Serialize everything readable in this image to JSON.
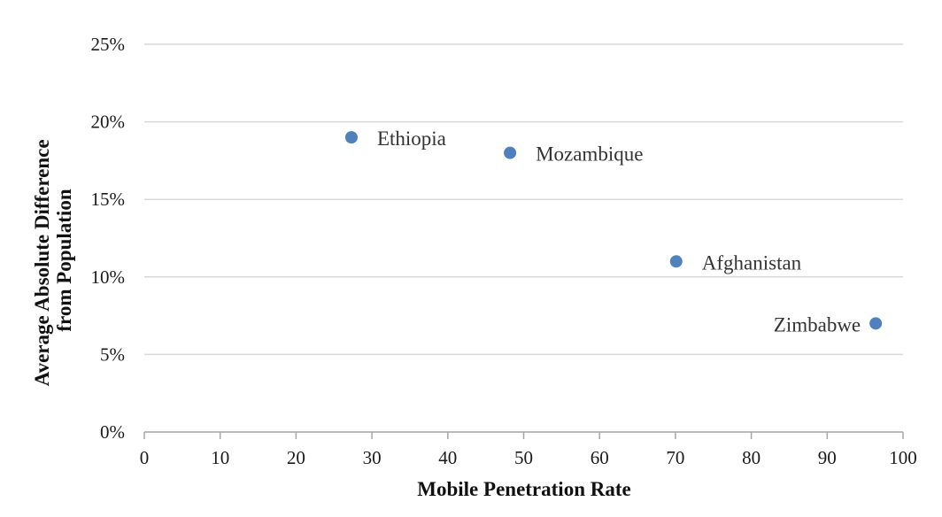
{
  "chart_data": {
    "type": "scatter",
    "xlabel": "Mobile Penetration Rate",
    "ylabel": [
      "Average Absolute Difference",
      "from Population"
    ],
    "xlim": [
      0,
      100
    ],
    "ylim": [
      0,
      25
    ],
    "xticks": [
      0,
      10,
      20,
      30,
      40,
      50,
      60,
      70,
      80,
      90,
      100
    ],
    "yticks": [
      0,
      5,
      10,
      15,
      20,
      25
    ],
    "ytick_labels": [
      "0%",
      "5%",
      "10%",
      "15%",
      "20%",
      "25%"
    ],
    "grid": "horizontal",
    "marker_color": "#4f81bd",
    "points": [
      {
        "label": "Ethiopia",
        "x": 27.3,
        "y": 19,
        "label_side": "right"
      },
      {
        "label": "Mozambique",
        "x": 48.2,
        "y": 18,
        "label_side": "right"
      },
      {
        "label": "Afghanistan",
        "x": 70.1,
        "y": 11,
        "label_side": "right"
      },
      {
        "label": "Zimbabwe",
        "x": 96.4,
        "y": 7,
        "label_side": "left"
      }
    ]
  }
}
